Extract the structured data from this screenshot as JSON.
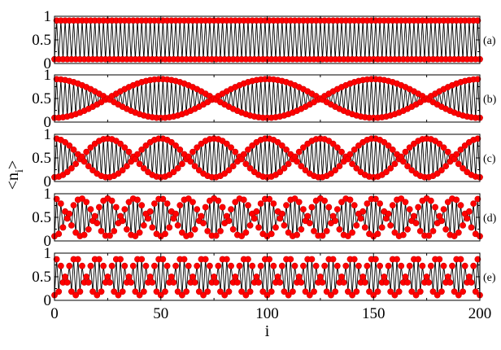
{
  "chart_data": {
    "type": "line",
    "xlabel": "i",
    "ylabel_main": "<n",
    "ylabel_sub": "i",
    "ylabel_end": ">",
    "xlim": [
      0,
      200
    ],
    "x_ticks": [
      "0",
      "50",
      "100",
      "150",
      "200"
    ],
    "ylim": [
      0,
      1
    ],
    "y_ticks": [
      "0",
      "0.5",
      "1"
    ],
    "grid": false,
    "colors": {
      "line": "#000000",
      "marker": "#ff0000",
      "marker_edge": "#cc0000",
      "axes": "#000000"
    },
    "sites": 201,
    "series_note": "each panel: <n_i> = 0.5 +/- A(i)/2, alternating sign per site; A(i) = |cos(pi*nodes*i/200)|",
    "panels": [
      {
        "label": "(a)",
        "nodes": 0,
        "amplitude": 0.82
      },
      {
        "label": "(b)",
        "nodes": 4,
        "amplitude": 0.82
      },
      {
        "label": "(c)",
        "nodes": 8,
        "amplitude": 0.82
      },
      {
        "label": "(d)",
        "nodes": 16,
        "amplitude": 0.8
      },
      {
        "label": "(e)",
        "nodes": 20,
        "amplitude": 0.78
      }
    ]
  }
}
